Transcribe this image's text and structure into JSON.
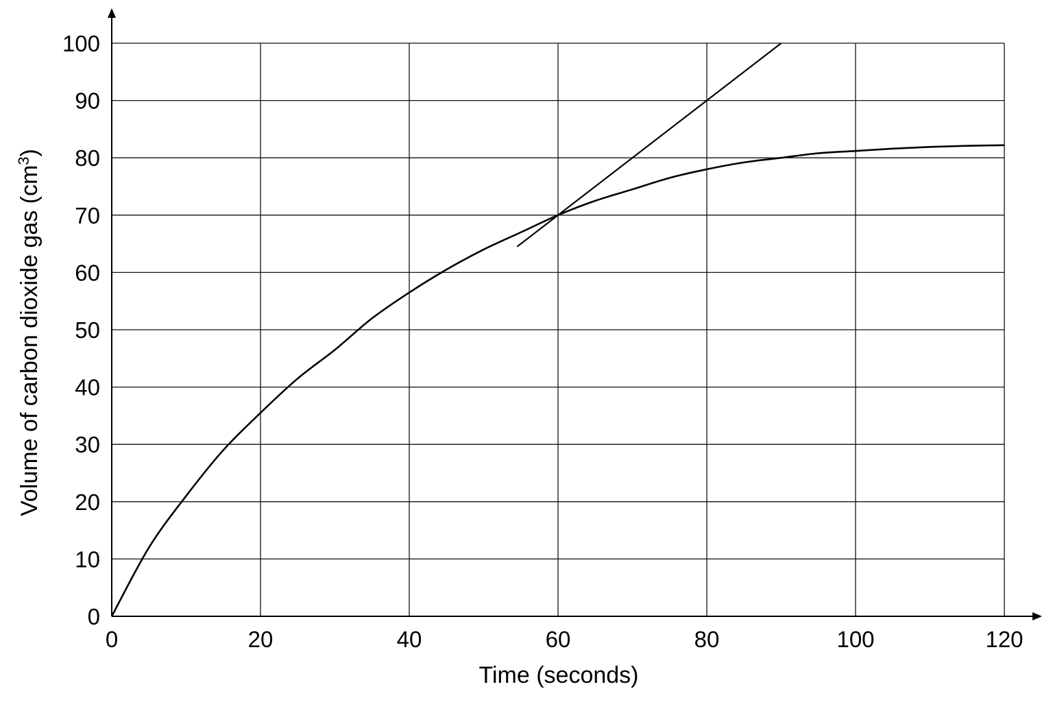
{
  "chart_data": {
    "type": "line",
    "xlabel": "Time (seconds)",
    "ylabel": {
      "main": "Volume of carbon dioxide gas (cm",
      "superscript": "3",
      "close": ")"
    },
    "xlim": [
      0,
      120
    ],
    "ylim": [
      0,
      100
    ],
    "x_ticks": [
      0,
      20,
      40,
      60,
      80,
      100,
      120
    ],
    "y_ticks": [
      0,
      10,
      20,
      30,
      40,
      50,
      60,
      70,
      80,
      90,
      100
    ],
    "grid": true,
    "series": [
      {
        "x": [
          0,
          5,
          10,
          15,
          20,
          25,
          30,
          35,
          40,
          45,
          50,
          55,
          60,
          65,
          70,
          75,
          80,
          85,
          90,
          95,
          100,
          105,
          110,
          115,
          120
        ],
        "y": [
          0,
          12,
          21,
          29,
          35.5,
          41.5,
          46.5,
          52,
          56.5,
          60.5,
          64,
          67,
          70,
          72.5,
          74.5,
          76.5,
          78,
          79.2,
          80,
          80.8,
          81.2,
          81.6,
          81.9,
          82.1,
          82.2
        ]
      }
    ],
    "tangent": {
      "x": [
        54.5,
        90
      ],
      "y": [
        64.5,
        100
      ]
    }
  }
}
